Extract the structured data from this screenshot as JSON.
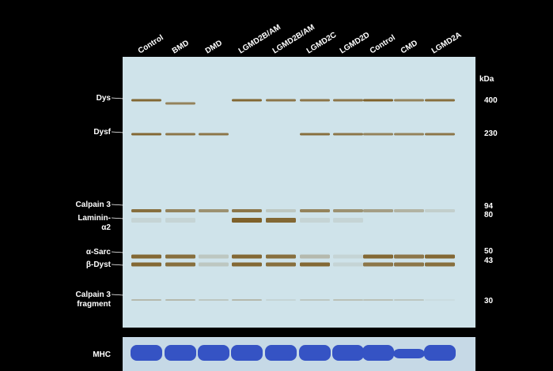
{
  "lanes": [
    "Control",
    "BMD",
    "DMD",
    "LGMD2B/AM",
    "LGMD2B/AM",
    "LGMD2C",
    "LGMD2D",
    "Control",
    "CMD",
    "LGMD2A"
  ],
  "left_labels": [
    {
      "lines": [
        "Dys"
      ]
    },
    {
      "lines": [
        "Dysf"
      ]
    },
    {
      "lines": [
        "Calpain 3"
      ]
    },
    {
      "lines": [
        "Laminin-",
        "α2"
      ]
    },
    {
      "lines": [
        "α-Sarc"
      ]
    },
    {
      "lines": [
        "β-Dyst"
      ]
    },
    {
      "lines": [
        "Calpain 3",
        "fragment"
      ]
    }
  ],
  "kda_title": "kDa",
  "kda_labels": [
    "400",
    "230",
    "94",
    "80",
    "50",
    "43",
    "30"
  ],
  "bottom_label": "MHC"
}
